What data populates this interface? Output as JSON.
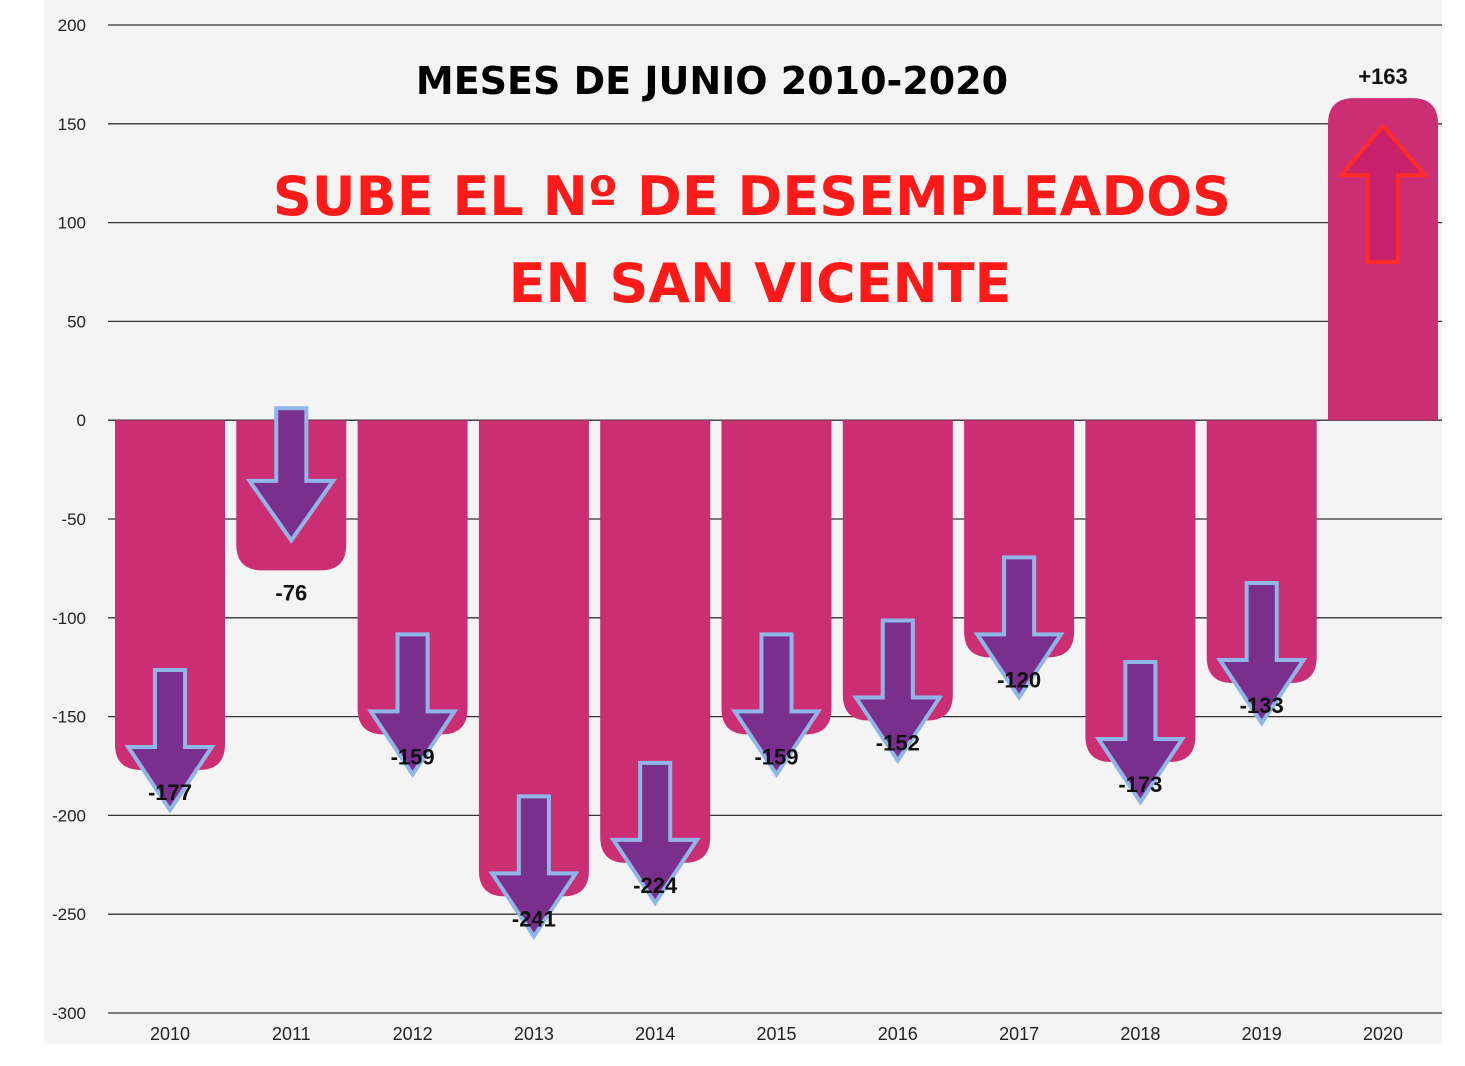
{
  "chart_data": {
    "type": "bar",
    "title": "MESES DE JUNIO 2010-2020",
    "headline": [
      "SUBE EL Nº DE DESEMPLEADOS",
      "EN SAN VICENTE"
    ],
    "categories": [
      "2010",
      "2011",
      "2012",
      "2013",
      "2014",
      "2015",
      "2016",
      "2017",
      "2018",
      "2019",
      "2020"
    ],
    "values": [
      -177,
      -76,
      -159,
      -241,
      -224,
      -159,
      -152,
      -120,
      -173,
      -133,
      163
    ],
    "data_labels": [
      "-177",
      "-76",
      "-159",
      "-241",
      "-224",
      "-159",
      "-152",
      "-120",
      "-173",
      "-133",
      "+163"
    ],
    "ylim": [
      -300,
      200
    ],
    "yticks": [
      200,
      150,
      100,
      50,
      0,
      -50,
      -100,
      -150,
      -200,
      -250,
      -300
    ],
    "grid": true,
    "xlabel": "",
    "ylabel": "",
    "colors": {
      "bar": "#cc2e74",
      "headline": "#ff1a1a",
      "plot_bg": "#f4f4f4",
      "grid": "#333333",
      "down_arrow_fill": "#7a2f8f",
      "down_arrow_stroke": "#8fb6e6",
      "up_arrow_fill": "#c8206a",
      "up_arrow_stroke": "#ff2a2a"
    },
    "arrow_icons": [
      "down-arrow-icon",
      "down-arrow-icon",
      "down-arrow-icon",
      "down-arrow-icon",
      "down-arrow-icon",
      "down-arrow-icon",
      "down-arrow-icon",
      "down-arrow-icon",
      "down-arrow-icon",
      "down-arrow-icon",
      "up-arrow-icon"
    ]
  }
}
